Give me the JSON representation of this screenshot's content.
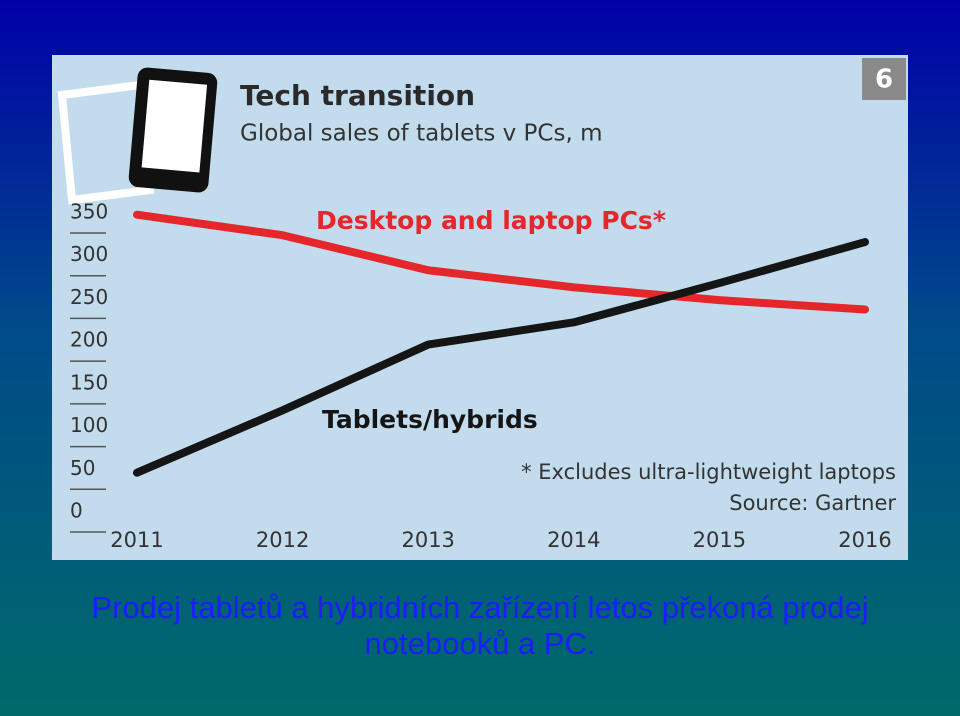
{
  "chart_data": {
    "type": "line",
    "badge": "6",
    "title": "Tech transition",
    "subtitle": "Global sales of tablets v PCs, m",
    "categories": [
      "2011",
      "2012",
      "2013",
      "2014",
      "2015",
      "2016"
    ],
    "series": [
      {
        "name": "Desktop and laptop PCs*",
        "color": "#e5262b",
        "values": [
          348,
          324,
          283,
          263,
          248,
          237
        ]
      },
      {
        "name": "Tablets/hybrids",
        "color": "#151515",
        "values": [
          46,
          119,
          196,
          222,
          268,
          316
        ]
      }
    ],
    "ylim": [
      0,
      350
    ],
    "yticks": [
      0,
      50,
      100,
      150,
      200,
      250,
      300,
      350
    ],
    "footnote": "* Excludes ultra-lightweight laptops",
    "source": "Source: Gartner"
  },
  "caption": "Prodej tabletů a hybridních zařízení letos překoná prodej notebooků a PC."
}
